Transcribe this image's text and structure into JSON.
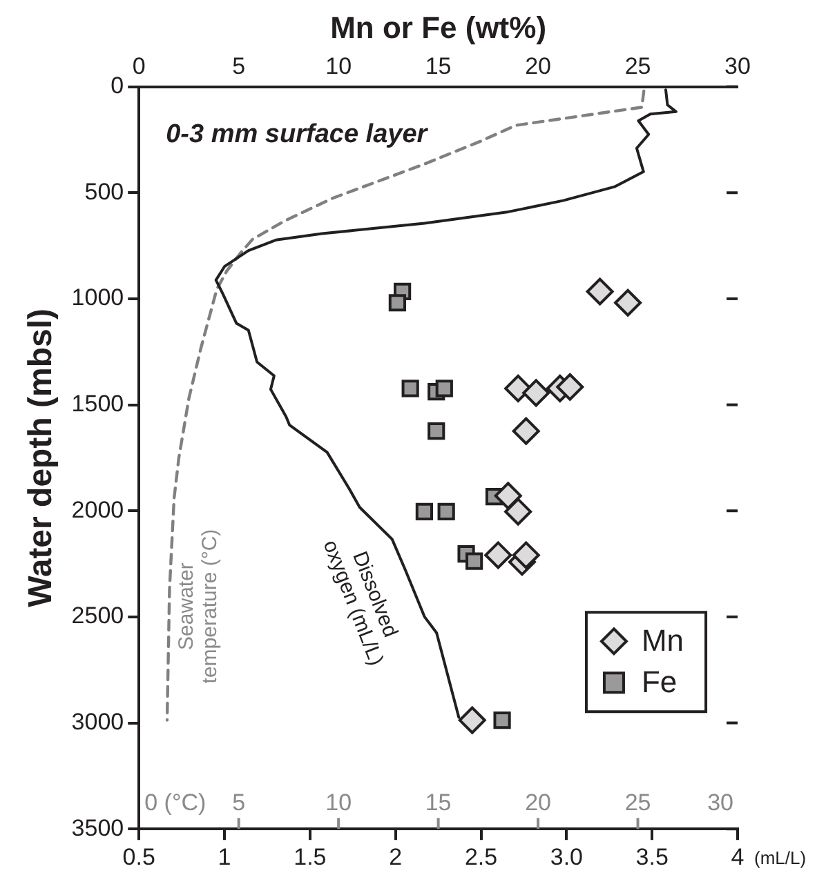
{
  "chart_data": {
    "type": "scatter",
    "x2label": "Mn or Fe (wt%)",
    "ylabel": "Water depth (mbsl)",
    "xlabel": "(mL/L)",
    "xlim": [
      0.5,
      4
    ],
    "xticks": [
      0.5,
      1,
      1.5,
      2,
      2.5,
      {
        "value": 3,
        "label": "3.0"
      },
      {
        "value": 3.5,
        "label": "3.5"
      },
      4
    ],
    "x2lim": [
      0,
      30
    ],
    "x2ticks": [
      0,
      5,
      10,
      15,
      20,
      25,
      30
    ],
    "ylim": [
      3500,
      0
    ],
    "yticks": [
      0,
      500,
      1000,
      1500,
      2000,
      2500,
      3000,
      3500
    ],
    "legend": "bottom right",
    "annotations": [
      "0-3 mm surface layer",
      "Seawater temperature (°C)",
      "Dissolved oxygen (mL/L)",
      "0 (°C)",
      "5",
      "10",
      "15",
      "20",
      "25",
      "30"
    ],
    "series": [
      {
        "name": "Mn",
        "axis": "x2",
        "marker": "diamond",
        "color": "#dcdcdc",
        "x": [
          23.1,
          24.5,
          19.0,
          19.9,
          21.1,
          21.6,
          19.4,
          18.5,
          19.0,
          18.0,
          19.2,
          19.4,
          16.7
        ],
        "values": [
          966,
          1019,
          1423,
          1444,
          1423,
          1416,
          1624,
          1929,
          2004,
          2209,
          2241,
          2209,
          2987
        ]
      },
      {
        "name": "Fe",
        "axis": "x2",
        "marker": "square",
        "color": "#9a9a9a",
        "x": [
          13.2,
          12.95,
          13.6,
          14.9,
          15.3,
          14.9,
          17.8,
          14.3,
          15.4,
          16.4,
          16.8,
          18.2
        ],
        "values": [
          966,
          1019,
          1423,
          1438,
          1423,
          1624,
          1933,
          2004,
          2004,
          2203,
          2237,
          2987
        ]
      },
      {
        "type": "line",
        "marker": "none",
        "line_style": "solid",
        "color": "#231f20",
        "x": [
          3.58,
          3.59,
          3.64,
          3.49,
          3.42,
          3.48,
          3.41,
          3.45,
          3.28,
          2.98,
          2.66,
          2.17,
          1.57,
          1.3,
          1.14,
          1.0,
          0.95,
          0.99,
          1.07,
          1.14,
          1.19,
          1.29,
          1.27,
          1.36,
          1.38,
          1.6,
          1.73,
          1.79,
          1.98,
          2.06,
          2.17,
          2.24,
          2.3,
          2.37
        ],
        "values": [
          15,
          86,
          118,
          129,
          161,
          225,
          290,
          401,
          472,
          537,
          590,
          644,
          693,
          723,
          773,
          848,
          912,
          976,
          1116,
          1148,
          1298,
          1363,
          1427,
          1556,
          1595,
          1724,
          1897,
          1983,
          2134,
          2284,
          2500,
          2575,
          2759,
          2974
        ]
      },
      {
        "type": "line",
        "axis": "x2",
        "marker": "none",
        "line_style": "dashed",
        "color": "#808080",
        "x": [
          25.3,
          25.2,
          18.9,
          17.1,
          14.3,
          9.7,
          7.3,
          5.7,
          5.1,
          4.4,
          3.9,
          3.1,
          2.5,
          2.0,
          1.76,
          1.53,
          1.41
        ],
        "values": [
          21,
          97,
          182,
          258,
          365,
          526,
          633,
          719,
          783,
          869,
          955,
          1234,
          1470,
          1749,
          1940,
          2371,
          2987
        ]
      }
    ]
  }
}
